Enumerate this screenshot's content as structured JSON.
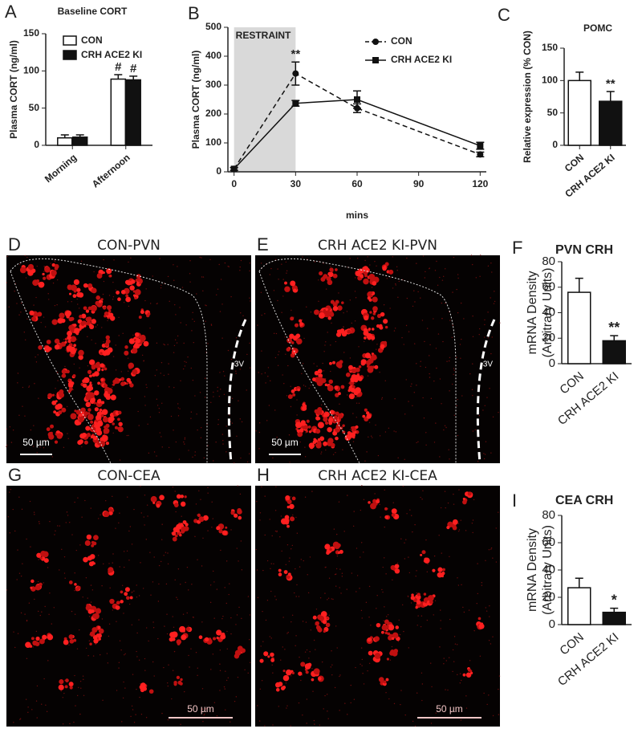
{
  "chart_data": [
    {
      "type": "bar",
      "panel": "A",
      "title": "Baseline CORT",
      "ylabel": "Plasma CORT (ng/ml)",
      "categories": [
        "Morning",
        "Afternoon"
      ],
      "series": [
        {
          "name": "CON",
          "color": "#ffffff",
          "values": [
            10,
            89
          ],
          "errors": [
            4,
            6
          ],
          "significance": [
            null,
            "#"
          ]
        },
        {
          "name": "CRH ACE2 KI",
          "color": "#111111",
          "values": [
            11,
            88
          ],
          "errors": [
            3,
            5
          ],
          "significance": [
            null,
            "#"
          ]
        }
      ],
      "ylim": [
        0,
        150
      ],
      "yticks": [
        0,
        50,
        100,
        150
      ],
      "legend": "top-left"
    },
    {
      "type": "line",
      "panel": "B",
      "ylabel": "Plasma CORT (ng/ml)",
      "xlabel": "mins",
      "x": [
        0,
        30,
        60,
        120
      ],
      "series": [
        {
          "name": "CON",
          "color": "#111111",
          "dashed": true,
          "marker": "circle",
          "values": [
            10,
            340,
            220,
            60
          ],
          "errors": [
            5,
            40,
            15,
            8
          ],
          "significance": [
            null,
            "**",
            null,
            null
          ]
        },
        {
          "name": "CRH ACE2 KI",
          "color": "#111111",
          "dashed": false,
          "marker": "square",
          "values": [
            10,
            237,
            250,
            90
          ],
          "errors": [
            5,
            10,
            30,
            12
          ]
        }
      ],
      "shade": {
        "from": 0,
        "to": 30,
        "label": "RESTRAINT",
        "color": "#d9d9d9"
      },
      "xlim": [
        -3,
        123
      ],
      "xticks": [
        0,
        30,
        60,
        90,
        120
      ],
      "ylim": [
        0,
        500
      ],
      "yticks": [
        0,
        100,
        200,
        300,
        400,
        500
      ],
      "legend": "top-right"
    },
    {
      "type": "bar",
      "panel": "C",
      "title": "POMC",
      "ylabel": "Relative expression (% CON)",
      "categories": [
        "CON",
        "CRH ACE2 KI"
      ],
      "values": [
        100,
        68
      ],
      "errors": [
        13,
        15
      ],
      "colors": [
        "#ffffff",
        "#111111"
      ],
      "significance": [
        null,
        "**"
      ],
      "ylim": [
        0,
        150
      ],
      "yticks": [
        0,
        50,
        100,
        150
      ]
    },
    {
      "type": "bar",
      "panel": "F",
      "title": "PVN CRH",
      "ylabel": [
        "mRNA Density",
        "(Arbitrary Units)"
      ],
      "categories": [
        "CON",
        "CRH ACE2 KI"
      ],
      "values": [
        56,
        18
      ],
      "errors": [
        11,
        4
      ],
      "colors": [
        "#ffffff",
        "#111111"
      ],
      "significance": [
        null,
        "**"
      ],
      "ylim": [
        0,
        80
      ],
      "yticks": [
        0,
        20,
        40,
        60,
        80
      ]
    },
    {
      "type": "bar",
      "panel": "I",
      "title": "CEA CRH",
      "ylabel": [
        "mRNA Density",
        "(Arbitrary Units)"
      ],
      "categories": [
        "CON",
        "CRH ACE2 KI"
      ],
      "values": [
        27,
        9
      ],
      "errors": [
        7,
        3
      ],
      "colors": [
        "#ffffff",
        "#111111"
      ],
      "significance": [
        null,
        "*"
      ],
      "ylim": [
        0,
        80
      ],
      "yticks": [
        0,
        20,
        40,
        60,
        80
      ]
    }
  ],
  "images": [
    {
      "panel": "D",
      "title": "CON-PVN",
      "scale_bar": "50 µm",
      "region_label": "3V"
    },
    {
      "panel": "E",
      "title": "CRH ACE2 KI-PVN",
      "scale_bar": "50 µm",
      "region_label": "3V"
    },
    {
      "panel": "G",
      "title": "CON-CEA",
      "scale_bar": "50 µm"
    },
    {
      "panel": "H",
      "title": "CRH ACE2 KI-CEA",
      "scale_bar": "50 µm"
    }
  ]
}
